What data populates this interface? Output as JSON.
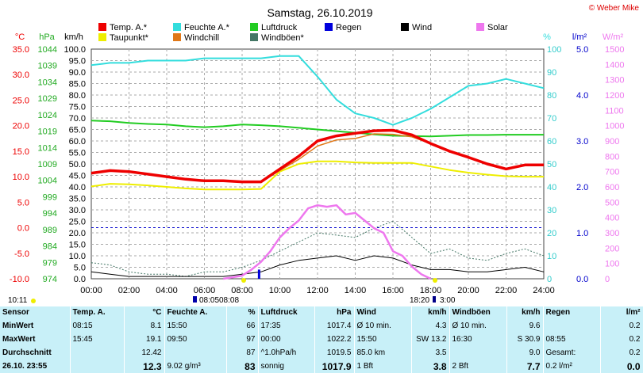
{
  "title": "Samstag, 26.10.2019",
  "copyright": "© Weber Mike",
  "axes": {
    "temp_unit": "°C",
    "pressure_unit": "hPa",
    "wind_unit": "km/h",
    "humidity_unit": "%",
    "rain_unit": "l/m²",
    "solar_unit": "W/m²"
  },
  "legend": [
    {
      "label": "Temp. A.*",
      "color": "#ee0000"
    },
    {
      "label": "Feuchte A.*",
      "color": "#33dddd"
    },
    {
      "label": "Luftdruck",
      "color": "#22cc22"
    },
    {
      "label": "Taupunkt*",
      "color": "#eeee00"
    },
    {
      "label": "Windchill",
      "color": "#e07818"
    },
    {
      "label": "Windböen*",
      "color": "#447766"
    },
    {
      "label": "Regen",
      "color": "#0000dd"
    },
    {
      "label": "Wind",
      "color": "#000000"
    },
    {
      "label": "Solar",
      "color": "#ee77ee"
    }
  ],
  "below_axis": {
    "left_time": "10:11",
    "sunrise": "08:05",
    "midday": "08:08",
    "sunset": "18:20",
    "moon": "3:00"
  },
  "chart_data": {
    "type": "line",
    "x_range": [
      "00:00",
      "24:00"
    ],
    "x_ticks": [
      "00:00",
      "02:00",
      "04:00",
      "06:00",
      "08:00",
      "10:00",
      "12:00",
      "14:00",
      "16:00",
      "18:00",
      "20:00",
      "22:00",
      "24:00"
    ],
    "y_axes": {
      "temperature_C": {
        "ylim": [
          -10,
          35
        ],
        "ticks": [
          "35.0",
          "30.0",
          "25.0",
          "20.0",
          "15.0",
          "10.0",
          "5.0",
          "0.0",
          "-5.0",
          "-10.0"
        ]
      },
      "pressure_hPa": {
        "ylim": [
          974,
          1044
        ],
        "ticks": [
          "1044",
          "1039",
          "1034",
          "1029",
          "1024",
          "1019",
          "1014",
          "1009",
          "1004",
          "999",
          "994",
          "989",
          "984",
          "979",
          "974"
        ]
      },
      "wind_kmh": {
        "ylim": [
          0,
          100
        ],
        "ticks": [
          "100.0",
          "95.0",
          "90.0",
          "85.0",
          "80.0",
          "75.0",
          "70.0",
          "65.0",
          "60.0",
          "55.0",
          "50.0",
          "45.0",
          "40.0",
          "35.0",
          "30.0",
          "25.0",
          "20.0",
          "15.0",
          "10.0",
          "5.0",
          "0.0"
        ]
      },
      "humidity_pct": {
        "ylim": [
          0,
          100
        ],
        "ticks": [
          "100",
          "90",
          "80",
          "70",
          "60",
          "50",
          "40",
          "30",
          "20",
          "10",
          "0"
        ]
      },
      "rain_lm2": {
        "ylim": [
          0,
          5
        ],
        "ticks": [
          "5.0",
          "4.0",
          "3.0",
          "2.0",
          "1.0",
          "0.0"
        ]
      },
      "solar_Wm2": {
        "ylim": [
          0,
          1500
        ],
        "ticks": [
          "1500",
          "1400",
          "1300",
          "1200",
          "1100",
          "1000",
          "900",
          "800",
          "700",
          "600",
          "500",
          "400",
          "300",
          "200",
          "100",
          "0"
        ]
      }
    },
    "series": [
      {
        "name": "Temp. A.*",
        "axis": "temperature_C",
        "color": "#ee0000",
        "x": [
          0,
          1,
          2,
          3,
          4,
          5,
          6,
          7,
          8,
          9,
          10,
          11,
          12,
          13,
          14,
          15,
          16,
          17,
          18,
          19,
          20,
          21,
          22,
          23,
          24
        ],
        "y": [
          10.7,
          11.2,
          11.0,
          10.5,
          10.0,
          9.5,
          9.2,
          9.2,
          9.0,
          9.0,
          11.5,
          14.0,
          17.0,
          18.0,
          18.5,
          19.0,
          19.1,
          18.2,
          16.5,
          15.0,
          13.8,
          12.5,
          11.5,
          12.3,
          12.3
        ]
      },
      {
        "name": "Taupunkt*",
        "axis": "temperature_C",
        "color": "#eeee00",
        "x": [
          0,
          1,
          2,
          3,
          4,
          5,
          6,
          7,
          8,
          9,
          10,
          11,
          12,
          13,
          14,
          15,
          16,
          17,
          18,
          19,
          20,
          21,
          22,
          23,
          24
        ],
        "y": [
          8.1,
          8.6,
          8.5,
          8.3,
          8.0,
          7.7,
          7.5,
          7.5,
          7.5,
          7.6,
          11.0,
          12.5,
          13.0,
          13.0,
          12.8,
          12.7,
          12.7,
          12.7,
          12.0,
          11.3,
          10.8,
          10.4,
          10.1,
          10.0,
          10.0
        ]
      },
      {
        "name": "Windchill",
        "axis": "temperature_C",
        "color": "#e07818",
        "x": [
          0,
          1,
          2,
          3,
          4,
          5,
          6,
          7,
          8,
          9,
          10,
          11,
          12,
          13,
          14,
          15,
          16,
          17,
          18,
          19,
          20,
          21,
          22,
          23,
          24
        ],
        "y": [
          10.7,
          11.2,
          11.0,
          10.5,
          10.0,
          9.5,
          9.2,
          9.2,
          9.0,
          9.0,
          11.2,
          13.4,
          16.0,
          17.2,
          17.5,
          18.4,
          18.3,
          17.8,
          16.5,
          15.0,
          13.8,
          12.5,
          11.5,
          12.3,
          12.3
        ]
      },
      {
        "name": "Feuchte A.*",
        "axis": "humidity_pct",
        "color": "#33dddd",
        "x": [
          0,
          1,
          2,
          3,
          4,
          5,
          6,
          7,
          8,
          9,
          10,
          11,
          12,
          13,
          14,
          15,
          16,
          17,
          18,
          19,
          20,
          21,
          22,
          23,
          24
        ],
        "y": [
          93,
          94,
          94,
          95,
          95,
          95,
          96,
          96,
          96,
          96,
          97,
          97,
          88,
          78,
          72,
          70,
          67,
          70,
          74,
          79,
          84,
          85,
          87,
          85,
          83
        ]
      },
      {
        "name": "Luftdruck",
        "axis": "pressure_hPa",
        "color": "#22cc22",
        "x": [
          0,
          1,
          2,
          3,
          4,
          5,
          6,
          7,
          8,
          9,
          10,
          11,
          12,
          13,
          14,
          15,
          16,
          17,
          18,
          19,
          20,
          21,
          22,
          23,
          24
        ],
        "y": [
          1022.2,
          1022.0,
          1021.5,
          1021.2,
          1021.0,
          1020.5,
          1020.2,
          1020.5,
          1021.0,
          1020.8,
          1020.5,
          1020.0,
          1019.5,
          1019.0,
          1018.5,
          1018.0,
          1017.6,
          1017.5,
          1017.4,
          1017.6,
          1017.8,
          1017.8,
          1017.9,
          1017.9,
          1017.9
        ]
      },
      {
        "name": "Windböen*",
        "axis": "wind_kmh",
        "color": "#447766",
        "x": [
          0,
          1,
          2,
          3,
          4,
          5,
          6,
          7,
          8,
          9,
          10,
          11,
          12,
          13,
          14,
          15,
          16,
          17,
          18,
          19,
          20,
          21,
          22,
          23,
          24
        ],
        "y": [
          7,
          6,
          3,
          2,
          2,
          1,
          3,
          3,
          5,
          8,
          12,
          16,
          20,
          19,
          18,
          22,
          25,
          18,
          11,
          13,
          9,
          8,
          11,
          13,
          10
        ]
      },
      {
        "name": "Wind",
        "axis": "wind_kmh",
        "color": "#000000",
        "x": [
          0,
          1,
          2,
          3,
          4,
          5,
          6,
          7,
          8,
          9,
          10,
          11,
          12,
          13,
          14,
          15,
          16,
          17,
          18,
          19,
          20,
          21,
          22,
          23,
          24
        ],
        "y": [
          3,
          2,
          1,
          1,
          1,
          1,
          1,
          1,
          2,
          3,
          6,
          8,
          9,
          10,
          8,
          10,
          9,
          6,
          4,
          4,
          3,
          3,
          4,
          5,
          3
        ]
      },
      {
        "name": "Solar",
        "axis": "solar_Wm2",
        "color": "#ee77ee",
        "x": [
          7,
          8,
          8.5,
          9,
          9.5,
          10,
          10.5,
          11,
          11.5,
          12,
          12.5,
          13,
          13.5,
          14,
          14.5,
          15,
          15.5,
          16,
          16.5,
          17,
          17.5,
          18
        ],
        "y": [
          0,
          20,
          60,
          110,
          180,
          270,
          330,
          380,
          460,
          480,
          470,
          480,
          420,
          430,
          380,
          330,
          300,
          180,
          150,
          80,
          30,
          0
        ]
      },
      {
        "name": "Regen",
        "axis": "rain_lm2",
        "color": "#0000dd",
        "x": [
          8.9
        ],
        "y": [
          0.2
        ]
      }
    ]
  },
  "table": {
    "header": [
      "Sensor",
      "Temp. A.",
      "°C",
      "Feuchte A.",
      "%",
      "Luftdruck",
      "hPa",
      "Wind",
      "km/h",
      "Windböen",
      "km/h",
      "Regen",
      "l/m²"
    ],
    "rows": [
      {
        "label": "MinWert",
        "cells": [
          "08:15",
          "8.1",
          "15:50",
          "66",
          "17:35",
          "1017.4",
          "Ø 10 min.",
          "4.3",
          "Ø 10 min.",
          "9.6",
          "",
          "0.2"
        ]
      },
      {
        "label": "MaxWert",
        "cells": [
          "15:45",
          "19.1",
          "09:50",
          "97",
          "00:00",
          "1022.2",
          "15:50",
          "SW 13.2",
          "16:30",
          "S 30.9",
          "08:55",
          "0.2"
        ]
      },
      {
        "label": "Durchschnitt",
        "cells": [
          "",
          "12.42",
          "",
          "87",
          "^1.0hPa/h",
          "1019.5",
          "85.0 km",
          "3.5",
          "",
          "9.0",
          "Gesamt:",
          "0.2"
        ]
      },
      {
        "label": "26.10. 23:55",
        "cells": [
          "",
          "12.3",
          "9.02 g/m³",
          "83",
          "sonnig",
          "1017.9",
          "1 Bft",
          "3.8",
          "2 Bft",
          "7.7",
          "0.2 l/m²",
          "0.0"
        ]
      }
    ]
  }
}
